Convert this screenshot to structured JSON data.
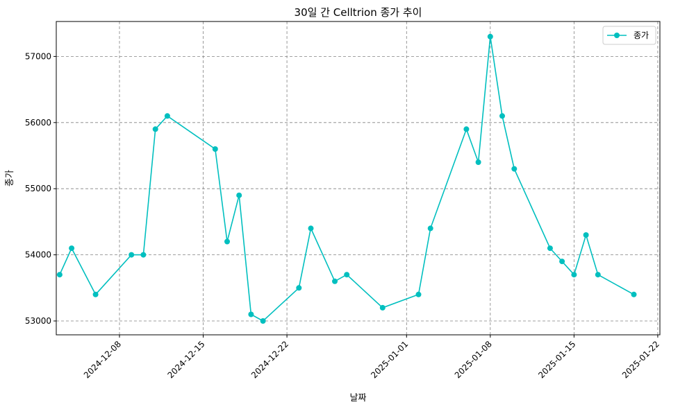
{
  "chart_data": {
    "type": "line",
    "title": "30일 간 Celltrion 종가 추이",
    "xlabel": "날짜",
    "ylabel": "종가",
    "ylim": [
      52800,
      57530
    ],
    "xlim": [
      "2024-12-04",
      "2025-01-22"
    ],
    "grid": true,
    "legend": {
      "position": "top-right",
      "entries": [
        "종가"
      ]
    },
    "colors": {
      "line": "#00BFBF",
      "grid": "#808080"
    },
    "x_ticks": [
      "2024-12-08",
      "2024-12-15",
      "2024-12-22",
      "2025-01-01",
      "2025-01-08",
      "2025-01-15",
      "2025-01-22"
    ],
    "y_ticks": [
      53000,
      54000,
      55000,
      56000,
      57000
    ],
    "series": [
      {
        "name": "종가",
        "points": [
          [
            "2024-12-03",
            53700
          ],
          [
            "2024-12-04",
            54100
          ],
          [
            "2024-12-06",
            53400
          ],
          [
            "2024-12-09",
            54000
          ],
          [
            "2024-12-10",
            54000
          ],
          [
            "2024-12-11",
            55900
          ],
          [
            "2024-12-12",
            56100
          ],
          [
            "2024-12-16",
            55600
          ],
          [
            "2024-12-17",
            54200
          ],
          [
            "2024-12-18",
            54900
          ],
          [
            "2024-12-19",
            53100
          ],
          [
            "2024-12-20",
            53000
          ],
          [
            "2024-12-23",
            53500
          ],
          [
            "2024-12-24",
            54400
          ],
          [
            "2024-12-26",
            53600
          ],
          [
            "2024-12-27",
            53700
          ],
          [
            "2024-12-30",
            53200
          ],
          [
            "2025-01-02",
            53400
          ],
          [
            "2025-01-03",
            54400
          ],
          [
            "2025-01-06",
            55900
          ],
          [
            "2025-01-07",
            55400
          ],
          [
            "2025-01-08",
            57300
          ],
          [
            "2025-01-09",
            56100
          ],
          [
            "2025-01-10",
            55300
          ],
          [
            "2025-01-13",
            54100
          ],
          [
            "2025-01-14",
            53900
          ],
          [
            "2025-01-15",
            53700
          ],
          [
            "2025-01-16",
            54300
          ],
          [
            "2025-01-17",
            53700
          ],
          [
            "2025-01-20",
            53400
          ]
        ]
      }
    ]
  }
}
